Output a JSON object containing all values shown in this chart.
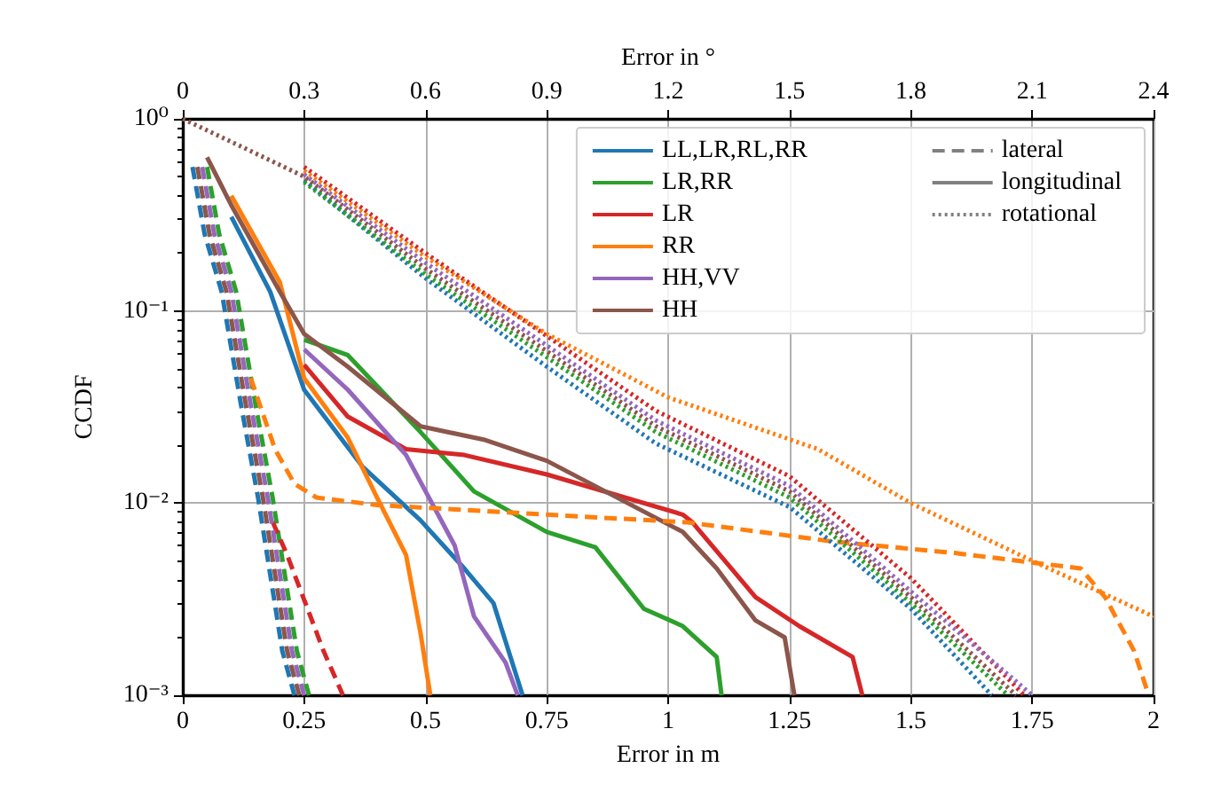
{
  "chart_data": {
    "type": "line",
    "xlabel": "Error in m",
    "x2label": "Error in °",
    "ylabel": "CCDF",
    "log": "y",
    "grid": true,
    "legend": "top right",
    "marker": "none",
    "xlim": [
      0,
      2
    ],
    "xticks": [
      0,
      0.25,
      0.5,
      0.75,
      1,
      1.25,
      1.5,
      1.75,
      2
    ],
    "x2lim": [
      0,
      2.4
    ],
    "x2ticks": [
      0,
      0.3,
      0.6,
      0.9,
      1.2,
      1.5,
      1.8,
      2.1,
      2.4
    ],
    "ylim": [
      0.001,
      1
    ],
    "yticks": [
      {
        "value": 1,
        "label": "10⁰"
      },
      {
        "value": 0.1,
        "label": "10⁻¹"
      },
      {
        "value": 0.01,
        "label": "10⁻²"
      },
      {
        "value": 0.001,
        "label": "10⁻³"
      }
    ],
    "series": [
      {
        "name": "LL,LR,RL,RR",
        "color": "#1f77b4",
        "line_style": "solid",
        "x": [
          0.1,
          0.18,
          0.25,
          0.37,
          0.49,
          0.58,
          0.64,
          0.7
        ],
        "values": [
          0.309,
          0.126,
          0.0389,
          0.0155,
          0.00813,
          0.00457,
          0.00302,
          0.001
        ]
      },
      {
        "name": "LR,RR",
        "color": "#2ca02c",
        "line_style": "solid",
        "x": [
          0.25,
          0.34,
          0.49,
          0.6,
          0.75,
          0.85,
          0.95,
          1.03,
          1.1,
          1.11
        ],
        "values": [
          0.0708,
          0.0589,
          0.0234,
          0.0115,
          0.00708,
          0.00589,
          0.00282,
          0.00229,
          0.00158,
          0.001
        ]
      },
      {
        "name": "LR",
        "color": "#d62728",
        "line_style": "solid",
        "x": [
          0.25,
          0.34,
          0.46,
          0.58,
          0.75,
          1.03,
          1.05,
          1.18,
          1.27,
          1.38,
          1.4
        ],
        "values": [
          0.0525,
          0.0282,
          0.0191,
          0.0178,
          0.0141,
          0.00871,
          0.00794,
          0.00324,
          0.00229,
          0.00158,
          0.001
        ]
      },
      {
        "name": "RR",
        "color": "#ff7f0e",
        "line_style": "solid",
        "x": [
          0.1,
          0.2,
          0.25,
          0.34,
          0.4,
          0.46,
          0.49,
          0.51
        ],
        "values": [
          0.398,
          0.141,
          0.0447,
          0.0219,
          0.0107,
          0.00537,
          0.00209,
          0.001
        ]
      },
      {
        "name": "HH,VV",
        "color": "#9467bd",
        "line_style": "solid",
        "x": [
          0.25,
          0.34,
          0.46,
          0.56,
          0.6,
          0.665,
          0.69
        ],
        "values": [
          0.0631,
          0.0389,
          0.0178,
          0.00603,
          0.00257,
          0.00148,
          0.001
        ]
      },
      {
        "name": "HH",
        "color": "#8c564b",
        "line_style": "solid",
        "x": [
          0.05,
          0.1,
          0.2,
          0.25,
          0.34,
          0.49,
          0.62,
          0.75,
          1.03,
          1.1,
          1.18,
          1.24,
          1.26
        ],
        "values": [
          0.631,
          0.355,
          0.126,
          0.0759,
          0.0513,
          0.0251,
          0.0214,
          0.0166,
          0.00708,
          0.00457,
          0.00245,
          0.002,
          0.001
        ]
      },
      {
        "color": "#1f77b4",
        "line_style": "dashed",
        "x": [
          0.02,
          0.045,
          0.08,
          0.12,
          0.155,
          0.205,
          0.23
        ],
        "values": [
          0.562,
          0.251,
          0.126,
          0.0324,
          0.0107,
          0.0017,
          0.001
        ]
      },
      {
        "color": "#2ca02c",
        "line_style": "dashed",
        "x": [
          0.05,
          0.075,
          0.11,
          0.15,
          0.185,
          0.235,
          0.26
        ],
        "values": [
          0.562,
          0.251,
          0.126,
          0.0324,
          0.0107,
          0.0017,
          0.001
        ]
      },
      {
        "color": "#d62728",
        "line_style": "dashed",
        "x": [
          0.185,
          0.215,
          0.29,
          0.33
        ],
        "values": [
          0.008,
          0.00537,
          0.0017,
          0.001
        ]
      },
      {
        "color": "#ff7f0e",
        "line_style": "dashed",
        "x": [
          0.14,
          0.19,
          0.23,
          0.275,
          0.4,
          0.75,
          1.04,
          1.34,
          1.59,
          1.85,
          1.9,
          1.96,
          1.99
        ],
        "values": [
          0.0447,
          0.0191,
          0.0126,
          0.0107,
          0.00977,
          0.00871,
          0.00794,
          0.00631,
          0.0055,
          0.00457,
          0.00324,
          0.0017,
          0.001
        ]
      },
      {
        "color": "#9467bd",
        "line_style": "dashed",
        "x": [
          0.04,
          0.065,
          0.1,
          0.14,
          0.175,
          0.225,
          0.25
        ],
        "values": [
          0.562,
          0.251,
          0.126,
          0.0324,
          0.0107,
          0.0017,
          0.001
        ]
      },
      {
        "color": "#8c564b",
        "line_style": "dashed",
        "x": [
          0.03,
          0.055,
          0.09,
          0.13,
          0.165,
          0.215,
          0.24
        ],
        "values": [
          0.562,
          0.251,
          0.126,
          0.0324,
          0.0107,
          0.0017,
          0.001
        ]
      },
      {
        "color": "#1f77b4",
        "line_style": "dotted",
        "axis": "x2",
        "x": [
          0.3,
          0.6,
          0.9,
          1.17,
          1.5,
          1.8,
          2.0
        ],
        "values": [
          0.479,
          0.148,
          0.0513,
          0.0204,
          0.00955,
          0.00282,
          0.001
        ]
      },
      {
        "color": "#2ca02c",
        "line_style": "dotted",
        "axis": "x2",
        "x": [
          0.3,
          0.6,
          0.9,
          1.17,
          1.5,
          1.8,
          2.04
        ],
        "values": [
          0.468,
          0.155,
          0.0575,
          0.0234,
          0.0107,
          0.00302,
          0.001
        ]
      },
      {
        "color": "#d62728",
        "line_style": "dotted",
        "axis": "x2",
        "x": [
          0.3,
          0.6,
          0.9,
          1.17,
          1.5,
          1.8,
          2.08
        ],
        "values": [
          0.562,
          0.2,
          0.0741,
          0.0302,
          0.0138,
          0.00407,
          0.001
        ]
      },
      {
        "color": "#ff7f0e",
        "line_style": "dotted",
        "axis": "x2",
        "x": [
          0.3,
          0.6,
          0.9,
          1.2,
          1.57,
          1.8,
          2.1,
          2.4
        ],
        "values": [
          0.537,
          0.191,
          0.0759,
          0.0355,
          0.0191,
          0.01,
          0.00501,
          0.00257
        ]
      },
      {
        "color": "#9467bd",
        "line_style": "dotted",
        "axis": "x2",
        "x": [
          0.3,
          0.6,
          0.9,
          1.17,
          1.5,
          1.8,
          2.1
        ],
        "values": [
          0.513,
          0.178,
          0.0661,
          0.0269,
          0.0123,
          0.00347,
          0.001
        ]
      },
      {
        "color": "#8c564b",
        "line_style": "dotted",
        "axis": "x2",
        "x": [
          0,
          0.3,
          0.6,
          0.9,
          1.17,
          1.5,
          1.8,
          2.06
        ],
        "values": [
          1,
          0.501,
          0.166,
          0.0617,
          0.0251,
          0.0115,
          0.00324,
          0.001
        ]
      },
      {
        "name": "lateral",
        "color": "#808080",
        "line_style": "dashed"
      },
      {
        "name": "longitudinal",
        "color": "#808080",
        "line_style": "solid"
      },
      {
        "name": "rotational",
        "color": "#808080",
        "line_style": "dotted"
      }
    ]
  }
}
